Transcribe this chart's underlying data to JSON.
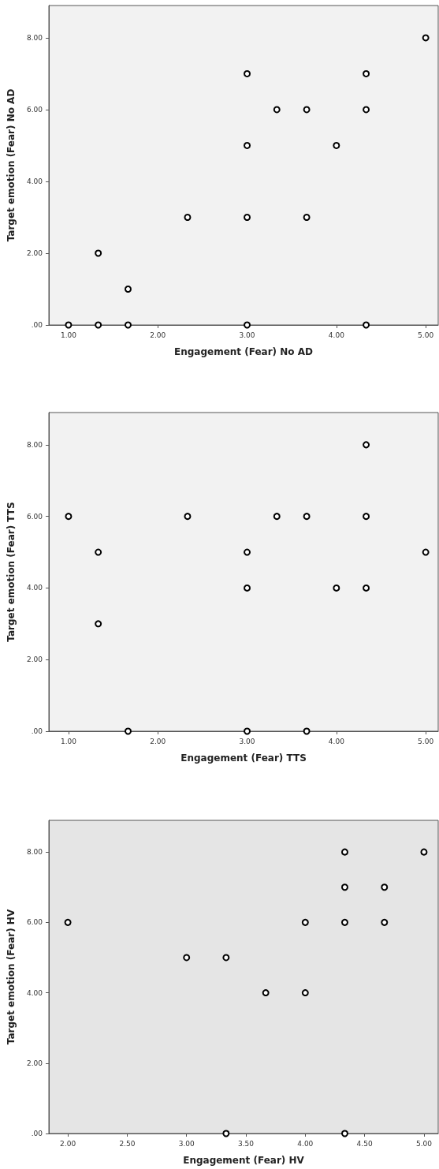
{
  "chart_data": [
    {
      "type": "scatter",
      "xlabel": "Engagement (Fear) No AD",
      "ylabel": "Target emotion (Fear) No AD",
      "marker": "circle",
      "grid": false,
      "xlim": [
        0.78,
        5.14
      ],
      "ylim": [
        0,
        8.9
      ],
      "xticks": [
        {
          "value": 1,
          "label": "1.00"
        },
        {
          "value": 2,
          "label": "2.00"
        },
        {
          "value": 3,
          "label": "3.00"
        },
        {
          "value": 4,
          "label": "4.00"
        },
        {
          "value": 5,
          "label": "5.00"
        }
      ],
      "yticks": [
        {
          "value": 0,
          "label": ".00"
        },
        {
          "value": 2,
          "label": "2.00"
        },
        {
          "value": 4,
          "label": "4.00"
        },
        {
          "value": 6,
          "label": "6.00"
        },
        {
          "value": 8,
          "label": "8.00"
        }
      ],
      "series": [
        {
          "color": "#000000",
          "x": [
            1,
            1.333,
            1.333,
            1.667,
            1.667,
            2.333,
            3,
            3,
            3,
            3,
            3.333,
            3.667,
            3.667,
            4,
            4.333,
            4.333,
            4.333,
            5
          ],
          "values": [
            0,
            2,
            0,
            1,
            0,
            3,
            7,
            5,
            3,
            0,
            6,
            6,
            3,
            5,
            7,
            6,
            0,
            8
          ]
        }
      ]
    },
    {
      "type": "scatter",
      "xlabel": "Engagement (Fear) TTS",
      "ylabel": "Target emotion (Fear) TTS",
      "marker": "circle",
      "grid": false,
      "xlim": [
        0.78,
        5.14
      ],
      "ylim": [
        0,
        8.9
      ],
      "xticks": [
        {
          "value": 1,
          "label": "1.00"
        },
        {
          "value": 2,
          "label": "2.00"
        },
        {
          "value": 3,
          "label": "3.00"
        },
        {
          "value": 4,
          "label": "4.00"
        },
        {
          "value": 5,
          "label": "5.00"
        }
      ],
      "yticks": [
        {
          "value": 0,
          "label": ".00"
        },
        {
          "value": 2,
          "label": "2.00"
        },
        {
          "value": 4,
          "label": "4.00"
        },
        {
          "value": 6,
          "label": "6.00"
        },
        {
          "value": 8,
          "label": "8.00"
        }
      ],
      "series": [
        {
          "color": "#000000",
          "x": [
            1,
            1.333,
            1.333,
            1.667,
            2.333,
            3,
            3,
            3,
            3.333,
            3.667,
            3.667,
            4,
            4.333,
            4.333,
            4.333,
            5
          ],
          "values": [
            6,
            5,
            3,
            0,
            6,
            5,
            4,
            0,
            6,
            6,
            0,
            4,
            8,
            6,
            4,
            5
          ]
        }
      ]
    },
    {
      "type": "scatter",
      "xlabel": "Engagement (Fear) HV",
      "ylabel": "Target emotion (Fear) HV",
      "marker": "circle",
      "grid": false,
      "xlim": [
        1.84,
        5.12
      ],
      "ylim": [
        0,
        8.9
      ],
      "xticks": [
        {
          "value": 2,
          "label": "2.00"
        },
        {
          "value": 2.5,
          "label": "2.50"
        },
        {
          "value": 3,
          "label": "3.00"
        },
        {
          "value": 3.5,
          "label": "3.50"
        },
        {
          "value": 4,
          "label": "4.00"
        },
        {
          "value": 4.5,
          "label": "4.50"
        },
        {
          "value": 5,
          "label": "5.00"
        }
      ],
      "yticks": [
        {
          "value": 0,
          "label": ".00"
        },
        {
          "value": 2,
          "label": "2.00"
        },
        {
          "value": 4,
          "label": "4.00"
        },
        {
          "value": 6,
          "label": "6.00"
        },
        {
          "value": 8,
          "label": "8.00"
        }
      ],
      "series": [
        {
          "color": "#000000",
          "x": [
            2,
            3,
            3.333,
            3.333,
            3.667,
            4,
            4,
            4.333,
            4.333,
            4.333,
            4.333,
            4.667,
            4.667,
            5
          ],
          "values": [
            6,
            5,
            5,
            0,
            4,
            6,
            4,
            8,
            7,
            6,
            0,
            7,
            6,
            8
          ]
        }
      ]
    }
  ]
}
